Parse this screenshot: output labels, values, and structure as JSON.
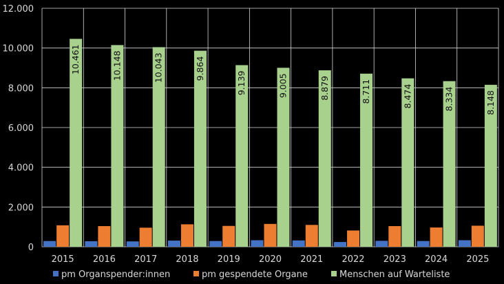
{
  "chart_data": {
    "type": "bar",
    "categories": [
      "2015",
      "2016",
      "2017",
      "2018",
      "2019",
      "2020",
      "2021",
      "2022",
      "2023",
      "2024",
      "2025"
    ],
    "series": [
      {
        "name": "pm Organspender:innen",
        "color": "#4472C4",
        "values": [
          290,
          280,
          270,
          310,
          290,
          330,
          320,
          240,
          300,
          290,
          330
        ]
      },
      {
        "name": "pm gespendete Organe",
        "color": "#ED7D31",
        "values": [
          1080,
          1040,
          960,
          1130,
          1050,
          1150,
          1100,
          820,
          1040,
          970,
          1060
        ]
      },
      {
        "name": "Menschen auf Warteliste",
        "color": "#A9D18E",
        "values": [
          10461,
          10148,
          10043,
          9864,
          9139,
          9005,
          8879,
          8711,
          8474,
          8334,
          8148
        ],
        "labels": [
          "10.461",
          "10.148",
          "10.043",
          "9.864",
          "9.139",
          "9.005",
          "8.879",
          "8.711",
          "8.474",
          "8.334",
          "8.148"
        ]
      }
    ],
    "ylim": [
      0,
      12000
    ],
    "yticks": [
      "0",
      "2.000",
      "4.000",
      "6.000",
      "8.000",
      "10.000",
      "12.000"
    ],
    "grid": true,
    "legend_position": "bottom"
  }
}
